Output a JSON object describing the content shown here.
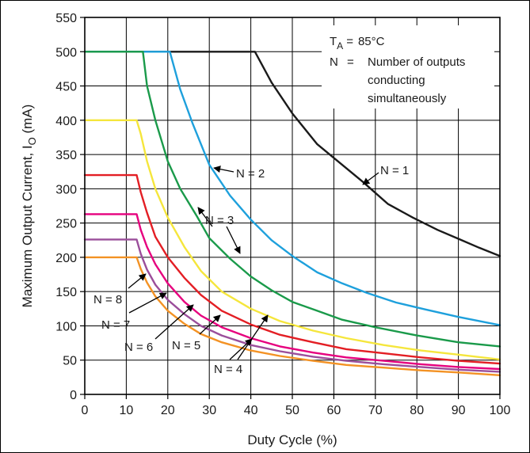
{
  "chart_data": {
    "type": "line",
    "xlabel": "Duty Cycle (%)",
    "ylabel_main": "Maximum Output Current, I",
    "ylabel_sub": "O",
    "ylabel_unit": " (mA)",
    "xlim": [
      0,
      100
    ],
    "ylim": [
      0,
      550
    ],
    "xticks": [
      0,
      10,
      20,
      30,
      40,
      50,
      60,
      70,
      80,
      90,
      100
    ],
    "yticks": [
      0,
      50,
      100,
      150,
      200,
      250,
      300,
      350,
      400,
      450,
      500,
      550
    ],
    "grid": true,
    "annotation": {
      "ta_symbol": "T",
      "ta_sub": "A",
      "ta_eq": "=",
      "ta_value": "85°C",
      "n_symbol": "N",
      "n_eq": "=",
      "n_line1": "Number of outputs",
      "n_line2": "conducting",
      "n_line3": "simultaneously"
    },
    "series": [
      {
        "name": "N = 1",
        "color": "#1a1a1a",
        "x": [
          0,
          41,
          45,
          50,
          56,
          62,
          67,
          73,
          79,
          85,
          90,
          95,
          100
        ],
        "y": [
          500,
          500,
          455,
          410,
          365,
          335,
          310,
          278,
          258,
          240,
          227,
          214,
          202
        ]
      },
      {
        "name": "N = 2",
        "color": "#1ea0dc",
        "x": [
          0,
          20.5,
          23,
          26,
          30,
          35,
          40,
          45,
          50,
          56,
          62,
          68,
          75,
          82,
          90,
          100
        ],
        "y": [
          500,
          500,
          445,
          395,
          335,
          290,
          255,
          225,
          202,
          178,
          162,
          148,
          134,
          124,
          113,
          101
        ]
      },
      {
        "name": "N = 3",
        "color": "#1a9a4a",
        "x": [
          0,
          14,
          15,
          17,
          20,
          23,
          27,
          30,
          35,
          40,
          45,
          50,
          56,
          62,
          70,
          80,
          90,
          100
        ],
        "y": [
          500,
          500,
          450,
          400,
          340,
          300,
          260,
          228,
          198,
          172,
          152,
          135,
          122,
          109,
          98,
          86,
          76,
          70
        ]
      },
      {
        "name": "N = 4",
        "color": "#f5e63c",
        "x": [
          0,
          12.5,
          13.5,
          15,
          17,
          20,
          24,
          28,
          33,
          40,
          47,
          55,
          63,
          72,
          81,
          90,
          100
        ],
        "y": [
          400,
          400,
          380,
          340,
          300,
          258,
          215,
          180,
          150,
          125,
          107,
          93,
          82,
          72,
          64,
          58,
          51
        ]
      },
      {
        "name": "N = 5",
        "color": "#e31e24",
        "x": [
          0,
          12.5,
          13.5,
          15,
          17,
          20,
          24,
          28,
          33,
          40,
          47,
          55,
          63,
          72,
          81,
          90,
          100
        ],
        "y": [
          320,
          320,
          295,
          265,
          230,
          200,
          170,
          145,
          122,
          102,
          87,
          76,
          66,
          60,
          54,
          49,
          45
        ]
      },
      {
        "name": "N = 6",
        "color": "#e6007e",
        "x": [
          0,
          12.5,
          13.5,
          15,
          17,
          20,
          24,
          28,
          33,
          40,
          47,
          55,
          63,
          72,
          81,
          90,
          100
        ],
        "y": [
          263,
          263,
          240,
          215,
          190,
          162,
          135,
          115,
          98,
          82,
          70,
          61,
          54,
          49,
          44,
          40,
          37
        ]
      },
      {
        "name": "N = 7",
        "color": "#9b4e9b",
        "x": [
          0,
          12.5,
          13.5,
          15,
          17,
          20,
          24,
          28,
          33,
          40,
          47,
          55,
          63,
          72,
          81,
          90,
          100
        ],
        "y": [
          226,
          226,
          205,
          182,
          160,
          138,
          117,
          100,
          86,
          72,
          63,
          55,
          49,
          44,
          40,
          36,
          33
        ]
      },
      {
        "name": "N = 8",
        "color": "#f39224",
        "x": [
          0,
          12.5,
          13.5,
          15,
          17,
          20,
          24,
          28,
          33,
          40,
          47,
          55,
          63,
          72,
          81,
          90,
          100
        ],
        "y": [
          200,
          200,
          183,
          163,
          143,
          122,
          103,
          88,
          76,
          64,
          56,
          49,
          43,
          39,
          35,
          32,
          28
        ]
      }
    ]
  }
}
